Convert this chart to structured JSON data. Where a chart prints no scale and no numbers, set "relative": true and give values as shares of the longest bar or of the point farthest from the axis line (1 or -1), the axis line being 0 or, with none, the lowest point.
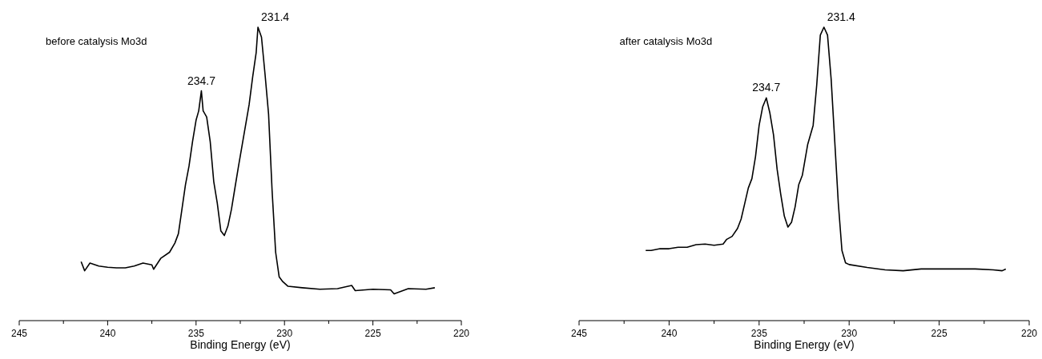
{
  "chart_data": [
    {
      "type": "line",
      "relative": true,
      "xlabel": "Binding Energy (eV)",
      "xlim": [
        245,
        220
      ],
      "xticks": [
        245,
        {
          "value": 242.5,
          "label": null
        },
        240,
        {
          "value": 237.5,
          "label": null
        },
        235,
        {
          "value": 232.5,
          "label": null
        },
        230,
        {
          "value": 227.5,
          "label": null
        },
        225,
        {
          "value": 222.5,
          "label": null
        },
        220
      ],
      "tick_labels": "x",
      "grid": false,
      "marker": "none",
      "line_style": "solid",
      "annotations": [
        "before catalysis Mo3d",
        {
          "text": "234.7",
          "x": 234.7,
          "y": 0.783
        },
        {
          "text": "231.4",
          "x": 231.5,
          "y": 1
        }
      ],
      "series": [
        {
          "color": "#000000",
          "x": [
            241.5,
            241.3,
            241.0,
            240.5,
            240.0,
            239.5,
            239.0,
            238.5,
            238.0,
            237.5,
            237.4,
            237.0,
            236.5,
            236.2,
            236.0,
            235.8,
            235.6,
            235.4,
            235.2,
            235.0,
            234.85,
            234.7,
            234.6,
            234.4,
            234.2,
            234.0,
            233.8,
            233.6,
            233.4,
            233.2,
            233.0,
            232.8,
            232.6,
            232.3,
            232.0,
            231.8,
            231.6,
            231.5,
            231.3,
            231.1,
            230.9,
            230.7,
            230.5,
            230.3,
            230.1,
            229.8,
            229.0,
            228.0,
            227.0,
            226.2,
            226.0,
            225.0,
            224.0,
            223.8,
            223.0,
            222.0,
            221.5
          ],
          "values": [
            0.201,
            0.17,
            0.196,
            0.186,
            0.182,
            0.18,
            0.18,
            0.186,
            0.196,
            0.19,
            0.175,
            0.212,
            0.233,
            0.264,
            0.296,
            0.379,
            0.463,
            0.526,
            0.61,
            0.683,
            0.715,
            0.783,
            0.715,
            0.694,
            0.61,
            0.474,
            0.4,
            0.306,
            0.29,
            0.322,
            0.379,
            0.453,
            0.526,
            0.631,
            0.736,
            0.83,
            0.914,
            1.0,
            0.966,
            0.84,
            0.704,
            0.442,
            0.233,
            0.149,
            0.133,
            0.117,
            0.112,
            0.107,
            0.109,
            0.12,
            0.102,
            0.107,
            0.105,
            0.091,
            0.109,
            0.107,
            0.112
          ]
        }
      ]
    },
    {
      "type": "line",
      "relative": true,
      "xlabel": "Binding Energy (eV)",
      "xlim": [
        245,
        220
      ],
      "xticks": [
        245,
        {
          "value": 242.5,
          "label": null
        },
        240,
        {
          "value": 237.5,
          "label": null
        },
        235,
        {
          "value": 232.5,
          "label": null
        },
        230,
        {
          "value": 227.5,
          "label": null
        },
        225,
        {
          "value": 222.5,
          "label": null
        },
        220
      ],
      "tick_labels": "x",
      "grid": false,
      "marker": "none",
      "line_style": "solid",
      "annotations": [
        "after catalysis Mo3d",
        {
          "text": "234.7",
          "x": 234.6,
          "y": 0.759
        },
        {
          "text": "231.4",
          "x": 231.4,
          "y": 1
        }
      ],
      "series": [
        {
          "color": "#000000",
          "x": [
            241.3,
            241.0,
            240.5,
            240.0,
            239.5,
            239.0,
            238.5,
            238.0,
            237.5,
            237.0,
            236.8,
            236.5,
            236.2,
            236.0,
            235.8,
            235.6,
            235.4,
            235.2,
            235.0,
            234.8,
            234.6,
            234.4,
            234.2,
            234.0,
            233.8,
            233.6,
            233.4,
            233.2,
            233.0,
            232.8,
            232.6,
            232.3,
            232.0,
            231.8,
            231.6,
            231.4,
            231.2,
            231.0,
            230.8,
            230.6,
            230.4,
            230.2,
            230.0,
            229.0,
            228.0,
            227.0,
            226.0,
            225.0,
            224.0,
            223.0,
            222.0,
            221.5,
            221.3
          ],
          "values": [
            0.239,
            0.239,
            0.245,
            0.245,
            0.25,
            0.25,
            0.259,
            0.261,
            0.257,
            0.261,
            0.277,
            0.287,
            0.314,
            0.346,
            0.399,
            0.452,
            0.484,
            0.559,
            0.665,
            0.729,
            0.759,
            0.707,
            0.633,
            0.516,
            0.431,
            0.356,
            0.319,
            0.335,
            0.388,
            0.463,
            0.495,
            0.601,
            0.665,
            0.803,
            0.973,
            1.0,
            0.973,
            0.824,
            0.612,
            0.399,
            0.239,
            0.197,
            0.191,
            0.181,
            0.173,
            0.17,
            0.176,
            0.176,
            0.176,
            0.176,
            0.173,
            0.17,
            0.176
          ]
        }
      ]
    }
  ]
}
